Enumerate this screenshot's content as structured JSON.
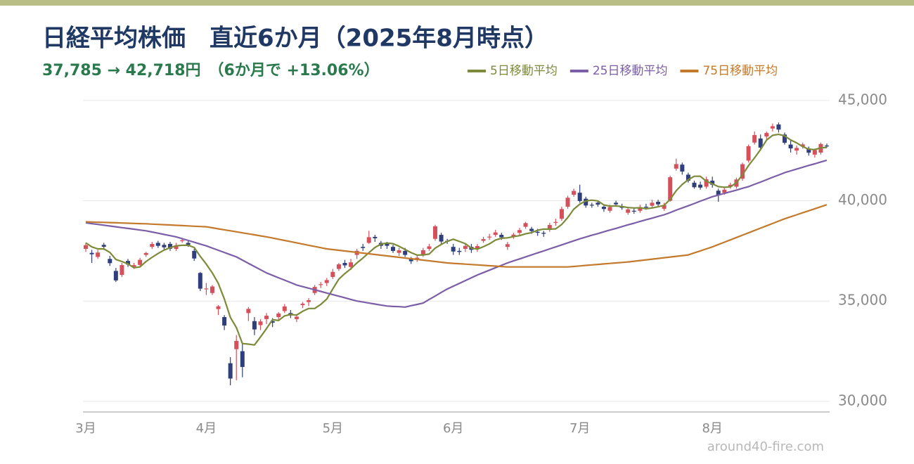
{
  "chart_data": {
    "type": "candlestick",
    "title": "日経平均株価　直近6か月（2025年8月時点）",
    "subtitle": "37,785 → 42,718円　（6か月で +13.06%）",
    "watermark": "around40-fire.com",
    "categories": [
      "3月",
      null,
      null,
      null,
      null,
      null,
      null,
      null,
      null,
      null,
      null,
      null,
      null,
      null,
      null,
      null,
      null,
      null,
      null,
      null,
      "4月",
      null,
      null,
      null,
      null,
      null,
      null,
      null,
      null,
      null,
      null,
      null,
      null,
      null,
      null,
      null,
      null,
      null,
      null,
      null,
      null,
      "5月",
      null,
      null,
      null,
      null,
      null,
      null,
      null,
      null,
      null,
      null,
      null,
      null,
      null,
      null,
      null,
      null,
      null,
      null,
      null,
      "6月",
      null,
      null,
      null,
      null,
      null,
      null,
      null,
      null,
      null,
      null,
      null,
      null,
      null,
      null,
      null,
      null,
      null,
      null,
      null,
      null,
      "7月",
      null,
      null,
      null,
      null,
      null,
      null,
      null,
      null,
      null,
      null,
      null,
      null,
      null,
      null,
      null,
      null,
      null,
      null,
      null,
      null,
      null,
      "8月",
      null,
      null,
      null,
      null,
      null,
      null,
      null,
      null,
      null,
      null,
      null,
      null,
      null,
      null,
      null,
      null,
      null,
      null,
      null
    ],
    "open": [
      37600,
      37400,
      37200,
      37800,
      37100,
      36500,
      36300,
      37000,
      36700,
      36800,
      37300,
      37700,
      37900,
      37800,
      37850,
      37600,
      38000,
      37900,
      37500,
      36400,
      35600,
      35400,
      34600,
      34200,
      31900,
      32600,
      32500,
      34400,
      34000,
      33800,
      34100,
      34000,
      34200,
      34500,
      34400,
      34100,
      34800,
      34950,
      35400,
      35800,
      35900,
      36200,
      36600,
      36900,
      36700,
      37300,
      37700,
      37900,
      38200,
      37900,
      37850,
      37700,
      37400,
      37500,
      37100,
      37050,
      37300,
      37600,
      38100,
      38300,
      38000,
      37700,
      37500,
      37600,
      37700,
      37600,
      38000,
      38200,
      38300,
      38300,
      37700,
      38200,
      38400,
      38700,
      38600,
      38450,
      38400,
      38600,
      38900,
      39100,
      39700,
      40300,
      40400,
      40100,
      39800,
      39900,
      39700,
      39500,
      39900,
      39700,
      39400,
      39500,
      39500,
      39700,
      39750,
      39950,
      39600,
      40000,
      41600,
      41800,
      41300,
      40900,
      40800,
      40700,
      41000,
      40500,
      40400,
      40700,
      40700,
      41100,
      42000,
      42900,
      43100,
      43200,
      43600,
      43800,
      43300,
      42800,
      42500,
      42700,
      42600,
      42300,
      42400,
      42750
    ],
    "high": [
      37900,
      37550,
      37550,
      37900,
      37250,
      36650,
      36900,
      37100,
      36900,
      37150,
      37450,
      37950,
      38000,
      37900,
      37950,
      37900,
      38150,
      38050,
      37600,
      36450,
      35900,
      35800,
      34800,
      34300,
      32200,
      33300,
      32900,
      34700,
      34200,
      34100,
      34400,
      34150,
      34450,
      34850,
      34550,
      34350,
      34950,
      35150,
      35800,
      35950,
      36150,
      36600,
      36900,
      37050,
      37100,
      37600,
      37850,
      38500,
      38300,
      38000,
      37950,
      37800,
      37650,
      37650,
      37200,
      37300,
      37650,
      37850,
      38800,
      38400,
      38100,
      37850,
      37650,
      37850,
      37850,
      37850,
      38200,
      38350,
      38550,
      38400,
      37950,
      38400,
      38650,
      38950,
      38700,
      38600,
      38500,
      38900,
      39100,
      39700,
      40250,
      40600,
      40800,
      40200,
      39900,
      40000,
      39800,
      39800,
      40000,
      39850,
      39700,
      39650,
      39800,
      39850,
      40050,
      40050,
      39900,
      41250,
      42100,
      41900,
      41400,
      41000,
      40950,
      41200,
      41200,
      40600,
      40700,
      40900,
      41150,
      41900,
      42800,
      43450,
      43300,
      43450,
      43850,
      43900,
      43400,
      43000,
      42750,
      42900,
      42700,
      42600,
      42900,
      42850
    ],
    "low": [
      37450,
      36900,
      37100,
      37550,
      36750,
      35950,
      36200,
      36700,
      36600,
      36700,
      37200,
      37600,
      37650,
      37550,
      37500,
      37500,
      37900,
      37700,
      37000,
      35500,
      35300,
      35300,
      34300,
      33550,
      30800,
      31050,
      31200,
      34000,
      33300,
      33550,
      33850,
      33700,
      34050,
      34400,
      34150,
      33950,
      34650,
      34750,
      35300,
      35650,
      35750,
      36100,
      36500,
      36650,
      36550,
      37100,
      37500,
      37850,
      37950,
      37600,
      37600,
      37400,
      37250,
      37200,
      36850,
      36950,
      37200,
      37500,
      38000,
      37850,
      37850,
      37300,
      37300,
      37450,
      37400,
      37450,
      37900,
      38050,
      38200,
      38050,
      37550,
      38100,
      38300,
      38600,
      38350,
      38250,
      38200,
      38450,
      38750,
      39000,
      39600,
      40200,
      39900,
      39650,
      39650,
      39700,
      39450,
      39400,
      39700,
      39550,
      39300,
      39350,
      39400,
      39550,
      39650,
      39700,
      39500,
      39950,
      41500,
      41300,
      40900,
      40600,
      40550,
      40600,
      40650,
      39950,
      40300,
      40600,
      40600,
      41000,
      41900,
      42800,
      42500,
      43050,
      43450,
      43400,
      42800,
      42400,
      42300,
      42600,
      42250,
      42150,
      42300,
      42650
    ],
    "close": [
      37785,
      37331,
      37418,
      37705,
      36887,
      36028,
      36793,
      36819,
      36790,
      37053,
      37396,
      37845,
      37751,
      37677,
      37608,
      37780,
      38027,
      37799,
      37120,
      35617,
      35624,
      35725,
      34735,
      33780,
      31136,
      33012,
      31714,
      34609,
      33585,
      33982,
      34267,
      33920,
      34377,
      34730,
      34279,
      34220,
      34868,
      35039,
      35705,
      35839,
      36045,
      36452,
      36830,
      36779,
      36928,
      37503,
      37644,
      38183,
      38128,
      37755,
      37753,
      37498,
      37529,
      37299,
      36985,
      37160,
      37532,
      37724,
      38722,
      37965,
      37965,
      37470,
      37446,
      37747,
      37554,
      37741,
      38088,
      38211,
      38421,
      38173,
      37834,
      38311,
      38536,
      38885,
      38488,
      38403,
      38354,
      38790,
      38942,
      39584,
      40150,
      40487,
      39986,
      39762,
      39785,
      39810,
      39587,
      39688,
      39821,
      39646,
      39569,
      39459,
      39678,
      39663,
      39901,
      39819,
      39774,
      41171,
      41826,
      41456,
      40998,
      40674,
      40654,
      41069,
      40799,
      40290,
      40549,
      40794,
      41059,
      41820,
      42718,
      43274,
      42649,
      43378,
      43714,
      43546,
      42888,
      42610,
      42633,
      42807,
      42394,
      42520,
      42828,
      42718
    ],
    "up_color": "#d5505b",
    "down_color": "#2e3f7c",
    "series": [
      {
        "name": "5日移動平均",
        "color": "#7d8a3a",
        "values": [
          37900,
          37700,
          37600,
          37600,
          37420,
          37070,
          36970,
          36850,
          36660,
          36700,
          36970,
          37180,
          37370,
          37540,
          37660,
          37750,
          37780,
          37780,
          37670,
          37230,
          36840,
          36400,
          35880,
          35100,
          34180,
          33680,
          32880,
          32850,
          32810,
          33210,
          33630,
          34070,
          34030,
          34260,
          34330,
          34300,
          34490,
          34630,
          34630,
          34830,
          35100,
          35600,
          36090,
          36370,
          36610,
          36900,
          37140,
          37410,
          37670,
          37840,
          37890,
          37860,
          37730,
          37570,
          37410,
          37290,
          37300,
          37340,
          37640,
          37820,
          37980,
          38080,
          37970,
          37860,
          37640,
          37590,
          37710,
          37850,
          38040,
          38130,
          38150,
          38210,
          38260,
          38350,
          38410,
          38530,
          38590,
          38580,
          38600,
          38820,
          39160,
          39580,
          39830,
          39990,
          40030,
          39990,
          39790,
          39730,
          39740,
          39710,
          39660,
          39640,
          39650,
          39600,
          39640,
          39700,
          39770,
          40070,
          40500,
          40810,
          41050,
          41220,
          41220,
          40970,
          40840,
          40700,
          40670,
          40690,
          40900,
          41290,
          41750,
          42140,
          42550,
          43020,
          43260,
          43310,
          43230,
          43030,
          42880,
          42700,
          42570,
          42550,
          42640,
          42650
        ]
      },
      {
        "name": "25日移動平均",
        "color": "#7b5ea7",
        "values": [
          38900,
          38860,
          38820,
          38780,
          38740,
          38700,
          38660,
          38620,
          38580,
          38540,
          38500,
          38440,
          38380,
          38320,
          38260,
          38200,
          38110,
          38020,
          37930,
          37840,
          37750,
          37640,
          37530,
          37420,
          37310,
          37200,
          37040,
          36880,
          36720,
          36560,
          36400,
          36280,
          36160,
          36040,
          35920,
          35800,
          35720,
          35640,
          35560,
          35480,
          35400,
          35320,
          35240,
          35160,
          35080,
          35000,
          34950,
          34900,
          34850,
          34800,
          34750,
          34730,
          34720,
          34700,
          34770,
          34830,
          34900,
          35080,
          35250,
          35430,
          35600,
          35740,
          35880,
          36020,
          36160,
          36300,
          36420,
          36540,
          36660,
          36780,
          36900,
          37000,
          37100,
          37200,
          37300,
          37400,
          37500,
          37600,
          37700,
          37800,
          37900,
          38000,
          38100,
          38190,
          38280,
          38360,
          38450,
          38540,
          38620,
          38710,
          38800,
          38880,
          38970,
          39050,
          39130,
          39220,
          39300,
          39410,
          39530,
          39640,
          39750,
          39860,
          39980,
          40090,
          40200,
          40280,
          40370,
          40450,
          40530,
          40620,
          40700,
          40820,
          40930,
          41050,
          41170,
          41280,
          41400,
          41490,
          41580,
          41670,
          41760,
          41840,
          41930,
          42020
        ]
      },
      {
        "name": "75日移動平均",
        "color": "#c37a2c",
        "values": [
          38950,
          38940,
          38930,
          38920,
          38910,
          38900,
          38890,
          38880,
          38870,
          38860,
          38850,
          38835,
          38820,
          38805,
          38790,
          38775,
          38760,
          38745,
          38730,
          38715,
          38700,
          38650,
          38600,
          38550,
          38500,
          38450,
          38400,
          38350,
          38300,
          38250,
          38200,
          38140,
          38080,
          38020,
          37960,
          37900,
          37840,
          37780,
          37720,
          37660,
          37600,
          37565,
          37530,
          37495,
          37460,
          37425,
          37390,
          37355,
          37320,
          37285,
          37250,
          37215,
          37180,
          37145,
          37110,
          37075,
          37040,
          37005,
          36970,
          36935,
          36900,
          36880,
          36860,
          36840,
          36820,
          36800,
          36780,
          36760,
          36740,
          36720,
          36700,
          36700,
          36700,
          36700,
          36700,
          36700,
          36700,
          36700,
          36700,
          36700,
          36700,
          36725,
          36750,
          36775,
          36800,
          36825,
          36850,
          36875,
          36900,
          36925,
          36950,
          36985,
          37020,
          37055,
          37090,
          37125,
          37160,
          37195,
          37230,
          37265,
          37300,
          37400,
          37500,
          37600,
          37700,
          37817,
          37933,
          38050,
          38167,
          38283,
          38400,
          38517,
          38633,
          38750,
          38867,
          38983,
          39100,
          39200,
          39300,
          39400,
          39500,
          39600,
          39700,
          39800
        ]
      }
    ],
    "ylim": [
      29470,
      45450
    ],
    "yticks": [
      {
        "value": 30000,
        "label": "30,000"
      },
      {
        "value": 35000,
        "label": "35,000"
      },
      {
        "value": 40000,
        "label": "40,000"
      },
      {
        "value": 45000,
        "label": "45,000"
      }
    ],
    "grid": true
  }
}
